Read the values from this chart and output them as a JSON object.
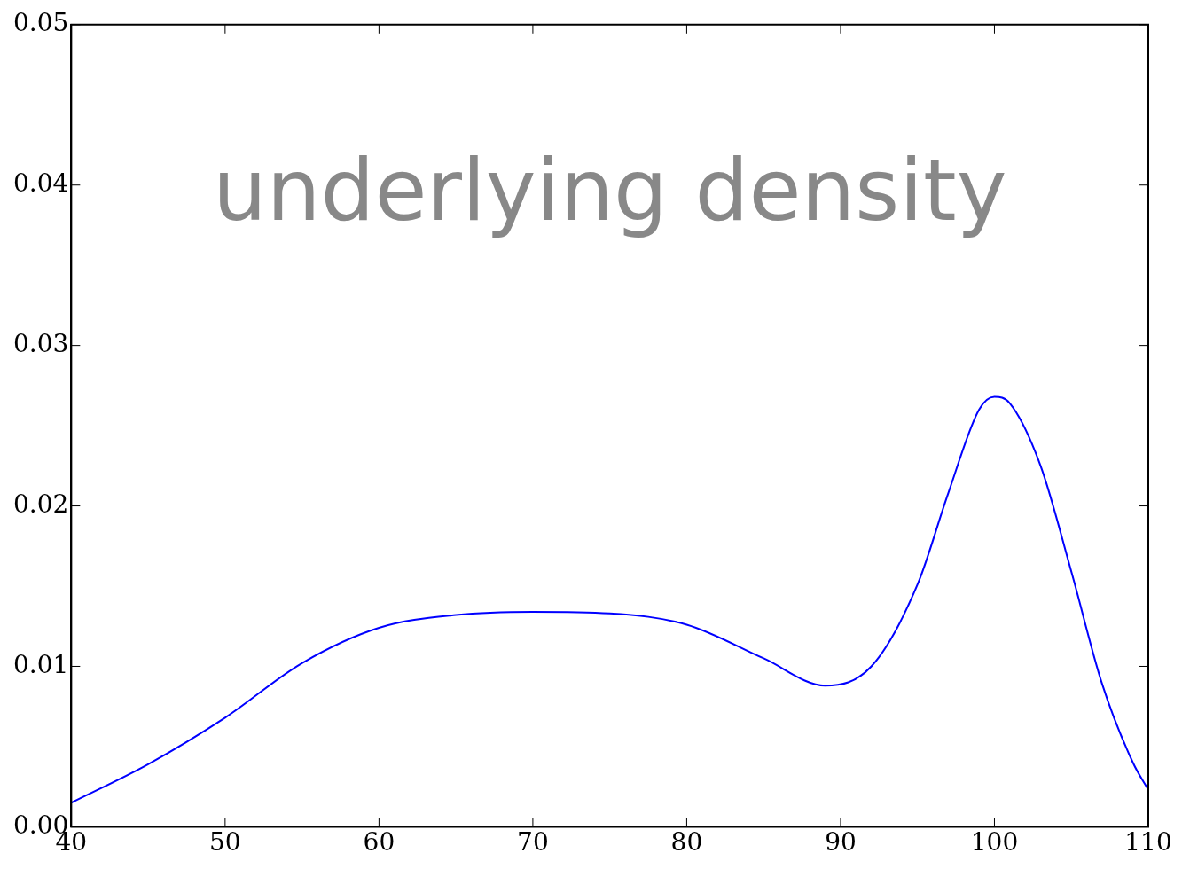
{
  "chart_data": {
    "type": "line",
    "annotations": [
      "underlying density"
    ],
    "x": [
      40,
      45,
      50,
      55,
      60,
      65,
      70,
      75,
      80,
      85,
      89,
      92,
      95,
      97,
      99,
      100,
      101,
      103,
      105,
      107,
      109,
      110
    ],
    "series": [
      {
        "color": "#0000ff",
        "values": [
          0.0015,
          0.0039,
          0.0068,
          0.0102,
          0.0124,
          0.0132,
          0.0134,
          0.0133,
          0.0126,
          0.0105,
          0.0088,
          0.01,
          0.0151,
          0.0208,
          0.026,
          0.0268,
          0.0264,
          0.0225,
          0.0159,
          0.0089,
          0.004,
          0.0023
        ]
      }
    ],
    "xlim": [
      40,
      110
    ],
    "xticks": [
      40,
      50,
      60,
      70,
      80,
      90,
      100,
      110
    ],
    "ylim": [
      0,
      0.05
    ],
    "yticks": [
      {
        "value": 0,
        "label": "0.00"
      },
      {
        "value": 0.01,
        "label": "0.01"
      },
      {
        "value": 0.02,
        "label": "0.02"
      },
      {
        "value": 0.03,
        "label": "0.03"
      },
      {
        "value": 0.04,
        "label": "0.04"
      },
      {
        "value": 0.05,
        "label": "0.05"
      }
    ],
    "grid": false,
    "legend": false,
    "marker": "none",
    "line_style": "solid"
  }
}
